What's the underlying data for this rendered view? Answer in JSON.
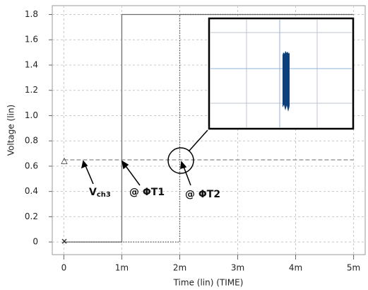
{
  "chart_data": {
    "type": "line",
    "xlabel": "Time (lin) (TIME)",
    "ylabel": "Voltage (lin)",
    "xlim": [
      -0.0002,
      0.0052
    ],
    "ylim": [
      -0.1,
      1.87
    ],
    "xticks": [
      0,
      {
        "value": 0.001,
        "label": "1m"
      },
      {
        "value": 0.002,
        "label": "2m"
      },
      {
        "value": 0.003,
        "label": "3m"
      },
      {
        "value": 0.004,
        "label": "4m"
      },
      {
        "value": 0.005,
        "label": "5m"
      }
    ],
    "yticks": [
      0,
      0.2,
      0.4,
      0.6,
      0.8,
      {
        "value": 1.0,
        "label": "1.0"
      },
      1.2,
      1.4,
      1.6,
      1.8
    ],
    "grid": true,
    "series": [
      {
        "color": "#6e6e6e",
        "style": "solid",
        "x": [
          0,
          0.001,
          0.001,
          0.005
        ],
        "values": [
          0,
          0,
          1.8,
          1.8
        ]
      },
      {
        "color": "#555555",
        "style": "dotted",
        "x": [
          0,
          0.002,
          0.002,
          0.005
        ],
        "values": [
          0,
          0,
          1.8,
          1.8
        ]
      },
      {
        "color": "#888888",
        "style": "dashed",
        "x": [
          0,
          0.005
        ],
        "values": [
          0.65,
          0.65
        ]
      }
    ],
    "annotations": [
      {
        "text": "V",
        "sub": "ch3"
      },
      {
        "text": "@ ΦT1"
      },
      {
        "text": "@ ΦT2"
      }
    ]
  }
}
